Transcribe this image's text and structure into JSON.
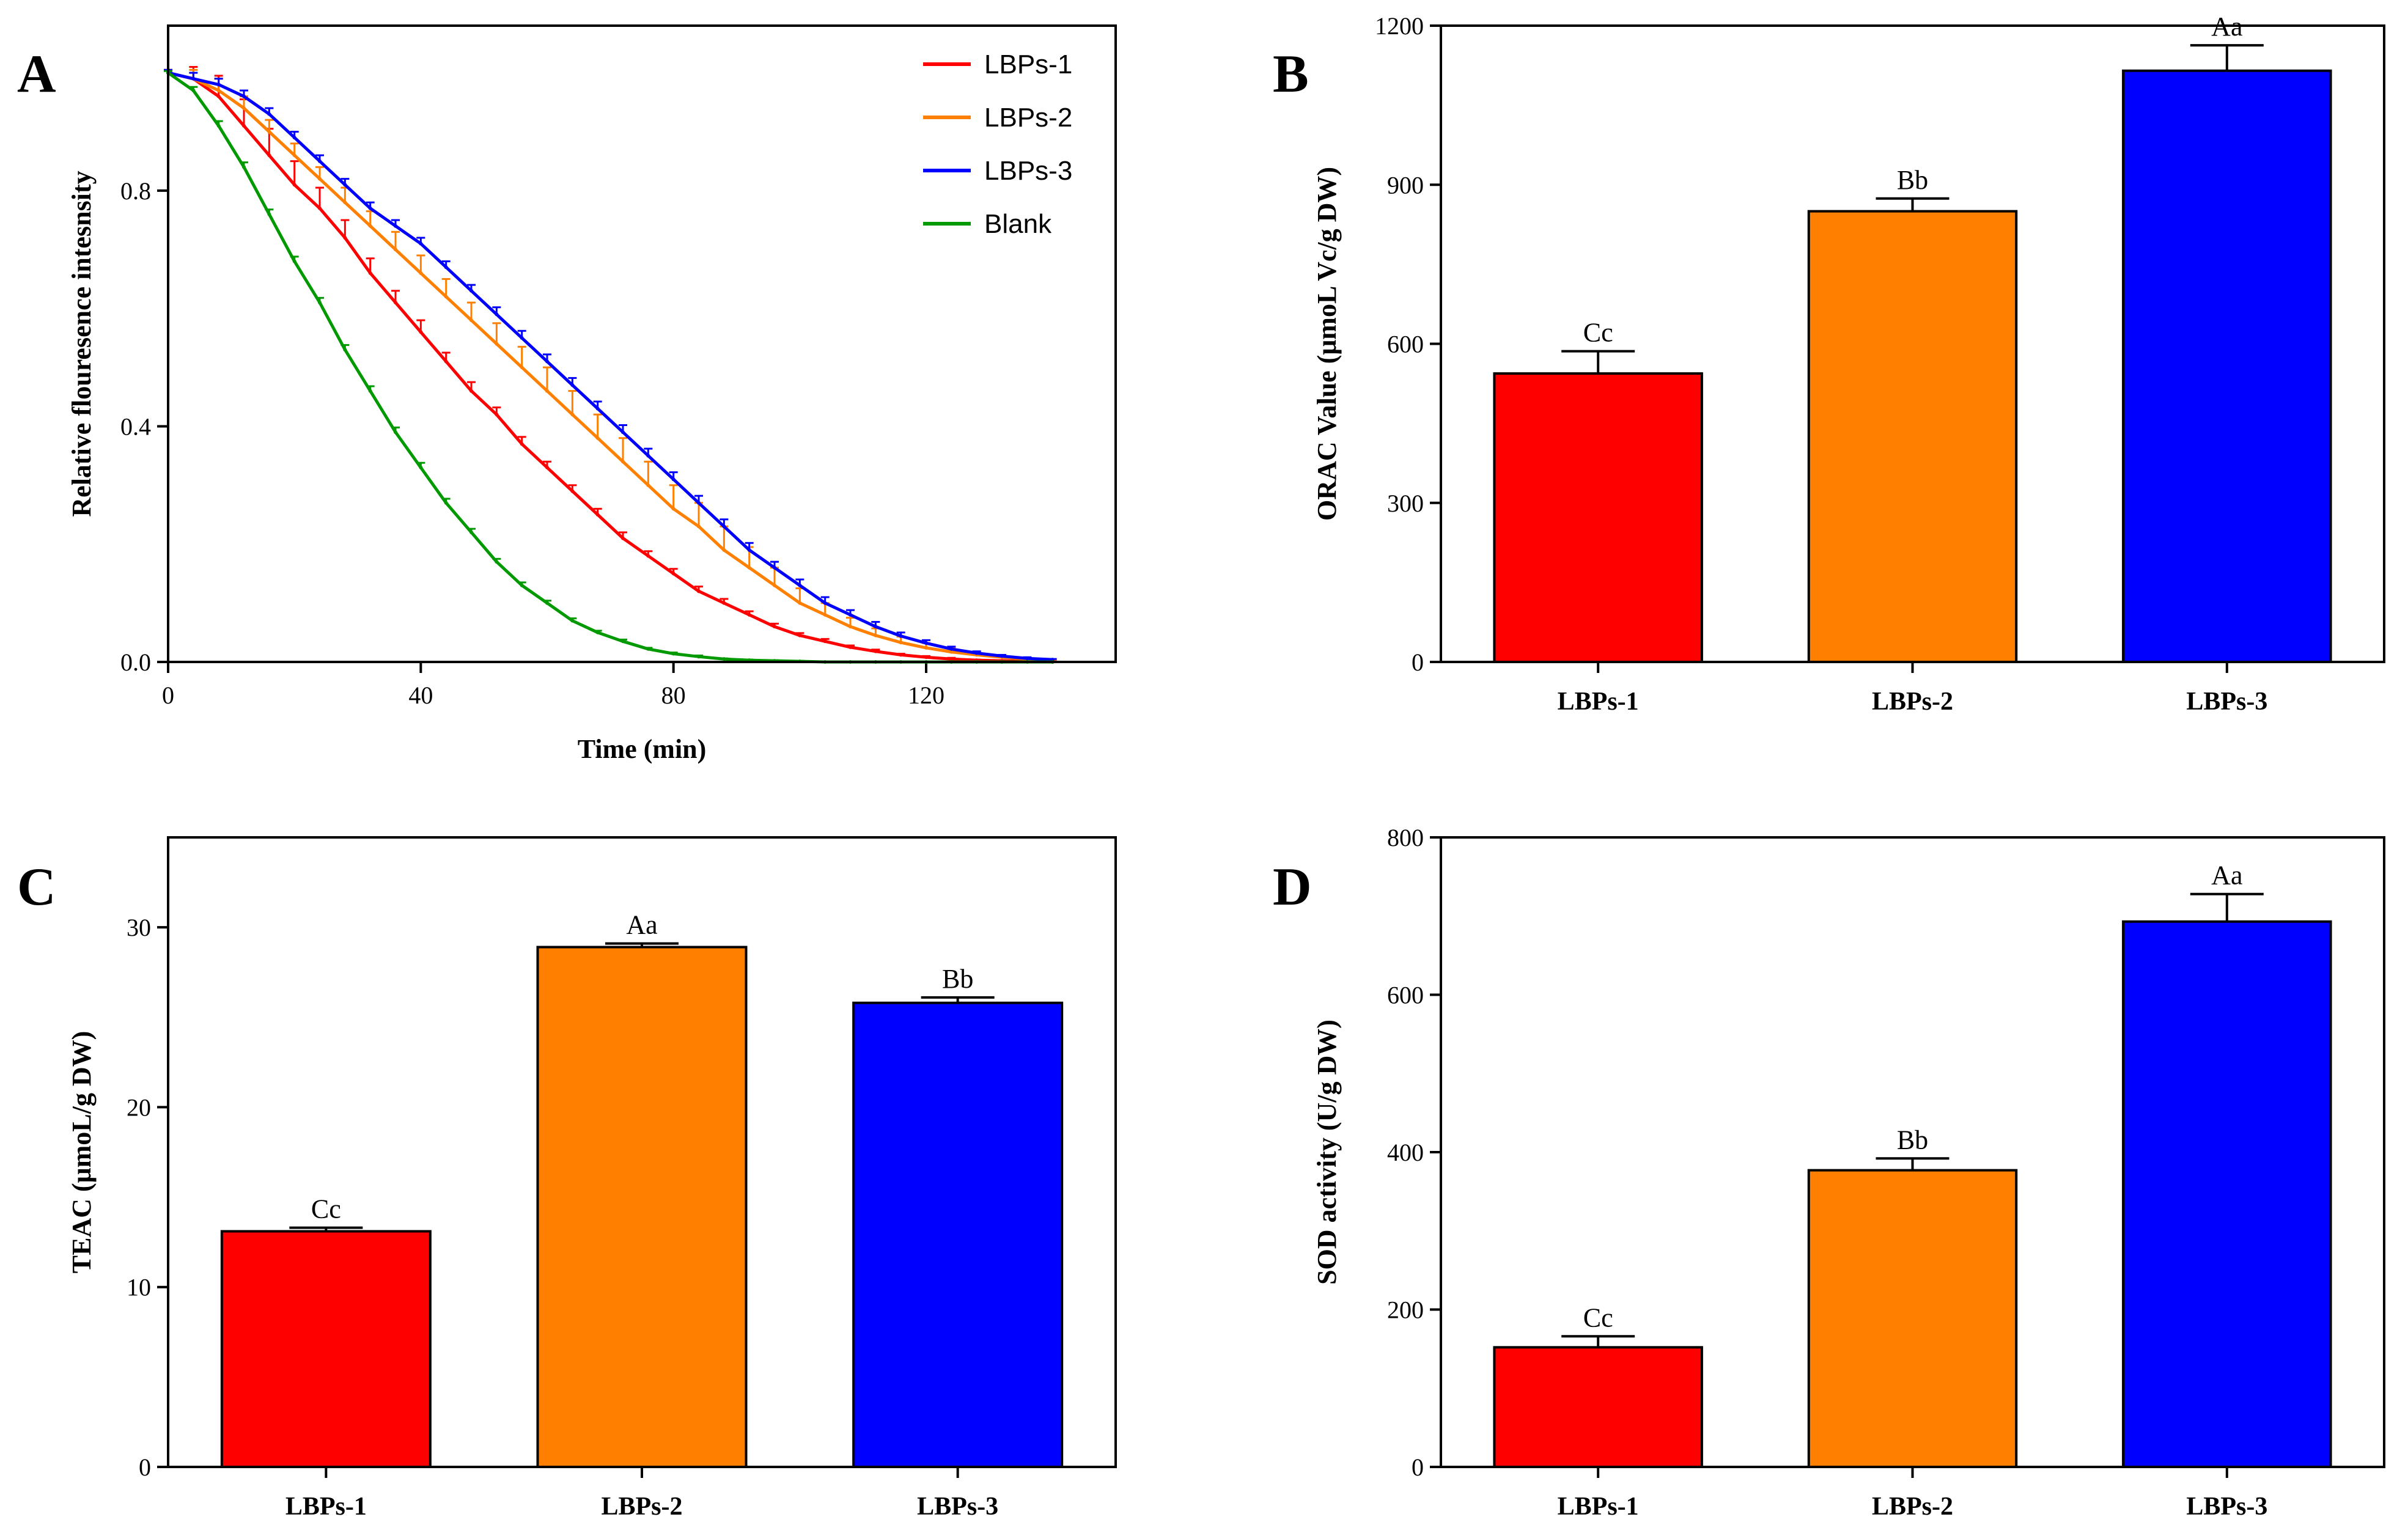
{
  "chart_data": [
    {
      "panel": "A",
      "type": "line",
      "xlabel": "Time (min)",
      "ylabel": "Relative flouresence intesnsity",
      "xlim": [
        0,
        150
      ],
      "ylim": [
        0,
        1.08
      ],
      "xticks": [
        0,
        40,
        80,
        120
      ],
      "yticks": [
        0.0,
        0.4,
        0.8
      ],
      "ytick_labels": [
        "0.0",
        "0.4",
        "0.8"
      ],
      "legend_position": "top-right",
      "x": [
        0,
        4,
        8,
        12,
        16,
        20,
        24,
        28,
        32,
        36,
        40,
        44,
        48,
        52,
        56,
        60,
        64,
        68,
        72,
        76,
        80,
        84,
        88,
        92,
        96,
        100,
        104,
        108,
        112,
        116,
        120,
        124,
        128,
        132,
        136,
        140
      ],
      "series": [
        {
          "name": "LBPs-1",
          "color": "#ff0000",
          "values": [
            1.0,
            0.99,
            0.96,
            0.91,
            0.86,
            0.81,
            0.77,
            0.72,
            0.66,
            0.61,
            0.56,
            0.51,
            0.46,
            0.42,
            0.37,
            0.33,
            0.29,
            0.25,
            0.21,
            0.18,
            0.15,
            0.12,
            0.1,
            0.08,
            0.06,
            0.045,
            0.035,
            0.025,
            0.018,
            0.012,
            0.008,
            0.005,
            0.003,
            0.002,
            0.001,
            0.0
          ],
          "errors": [
            0.005,
            0.02,
            0.035,
            0.045,
            0.045,
            0.04,
            0.035,
            0.03,
            0.025,
            0.02,
            0.02,
            0.015,
            0.015,
            0.012,
            0.012,
            0.01,
            0.01,
            0.01,
            0.01,
            0.008,
            0.008,
            0.008,
            0.007,
            0.006,
            0.005,
            0.004,
            0.004,
            0.003,
            0.003,
            0.002,
            0.002,
            0.002,
            0.001,
            0.001,
            0.001,
            0.001
          ]
        },
        {
          "name": "LBPs-2",
          "color": "#ff8000",
          "values": [
            1.0,
            0.99,
            0.97,
            0.94,
            0.9,
            0.86,
            0.82,
            0.78,
            0.74,
            0.7,
            0.66,
            0.62,
            0.58,
            0.54,
            0.5,
            0.46,
            0.42,
            0.38,
            0.34,
            0.3,
            0.26,
            0.23,
            0.19,
            0.16,
            0.13,
            0.1,
            0.08,
            0.06,
            0.045,
            0.033,
            0.024,
            0.017,
            0.012,
            0.008,
            0.005,
            0.003
          ],
          "errors": [
            0.005,
            0.015,
            0.02,
            0.02,
            0.02,
            0.02,
            0.02,
            0.025,
            0.025,
            0.03,
            0.03,
            0.03,
            0.03,
            0.035,
            0.035,
            0.04,
            0.04,
            0.04,
            0.04,
            0.04,
            0.04,
            0.04,
            0.04,
            0.035,
            0.03,
            0.025,
            0.02,
            0.015,
            0.012,
            0.01,
            0.008,
            0.006,
            0.004,
            0.003,
            0.002,
            0.001
          ]
        },
        {
          "name": "LBPs-3",
          "color": "#0000ff",
          "values": [
            1.0,
            0.99,
            0.98,
            0.96,
            0.93,
            0.89,
            0.85,
            0.81,
            0.77,
            0.74,
            0.71,
            0.67,
            0.63,
            0.59,
            0.55,
            0.51,
            0.47,
            0.43,
            0.39,
            0.35,
            0.31,
            0.27,
            0.23,
            0.19,
            0.16,
            0.13,
            0.1,
            0.08,
            0.06,
            0.044,
            0.032,
            0.022,
            0.015,
            0.01,
            0.006,
            0.004
          ],
          "errors": [
            0.005,
            0.01,
            0.01,
            0.01,
            0.01,
            0.01,
            0.01,
            0.01,
            0.01,
            0.01,
            0.01,
            0.01,
            0.01,
            0.012,
            0.012,
            0.012,
            0.012,
            0.012,
            0.012,
            0.012,
            0.012,
            0.012,
            0.012,
            0.012,
            0.01,
            0.01,
            0.01,
            0.008,
            0.008,
            0.006,
            0.005,
            0.004,
            0.003,
            0.002,
            0.002,
            0.001
          ]
        },
        {
          "name": "Blank",
          "color": "#009900",
          "values": [
            1.0,
            0.97,
            0.91,
            0.84,
            0.76,
            0.68,
            0.61,
            0.53,
            0.46,
            0.39,
            0.33,
            0.27,
            0.22,
            0.17,
            0.13,
            0.1,
            0.07,
            0.05,
            0.035,
            0.022,
            0.014,
            0.009,
            0.005,
            0.003,
            0.002,
            0.001,
            0.0,
            0.0,
            0.0,
            0.0,
            0.0,
            0.0,
            0.0,
            0.0,
            0.0,
            0.0
          ],
          "errors": [
            0.003,
            0.006,
            0.008,
            0.008,
            0.008,
            0.008,
            0.008,
            0.008,
            0.008,
            0.008,
            0.008,
            0.007,
            0.006,
            0.005,
            0.005,
            0.004,
            0.004,
            0.003,
            0.003,
            0.002,
            0.002,
            0.002,
            0.001,
            0.001,
            0.001,
            0.001,
            0.0,
            0.0,
            0.0,
            0.0,
            0.0,
            0.0,
            0.0,
            0.0,
            0.0,
            0.0
          ]
        }
      ]
    },
    {
      "panel": "B",
      "type": "bar",
      "categories": [
        "LBPs-1",
        "LBPs-2",
        "LBPs-3"
      ],
      "values": [
        544,
        850,
        1115
      ],
      "errors": [
        42,
        24,
        48
      ],
      "annotations": [
        "Cc",
        "Bb",
        "Aa"
      ],
      "colors": [
        "#ff0000",
        "#ff8000",
        "#0000ff"
      ],
      "ylabel": "ORAC Value (μmoL Vc/g DW)",
      "ylim": [
        0,
        1200
      ],
      "yticks": [
        0,
        300,
        600,
        900,
        1200
      ]
    },
    {
      "panel": "C",
      "type": "bar",
      "categories": [
        "LBPs-1",
        "LBPs-2",
        "LBPs-3"
      ],
      "values": [
        13.1,
        28.9,
        25.8
      ],
      "errors": [
        0.2,
        0.2,
        0.3
      ],
      "annotations": [
        "Cc",
        "Aa",
        "Bb"
      ],
      "colors": [
        "#ff0000",
        "#ff8000",
        "#0000ff"
      ],
      "ylabel": "TEAC (μmoL/g DW)",
      "ylim": [
        0,
        35
      ],
      "yticks": [
        0,
        10,
        20,
        30
      ]
    },
    {
      "panel": "D",
      "type": "bar",
      "categories": [
        "LBPs-1",
        "LBPs-2",
        "LBPs-3"
      ],
      "values": [
        152,
        377,
        693
      ],
      "errors": [
        14,
        15,
        35
      ],
      "annotations": [
        "Cc",
        "Bb",
        "Aa"
      ],
      "colors": [
        "#ff0000",
        "#ff8000",
        "#0000ff"
      ],
      "ylabel": "SOD activity (U/g DW)",
      "ylim": [
        0,
        800
      ],
      "yticks": [
        0,
        200,
        400,
        600,
        800
      ]
    }
  ]
}
